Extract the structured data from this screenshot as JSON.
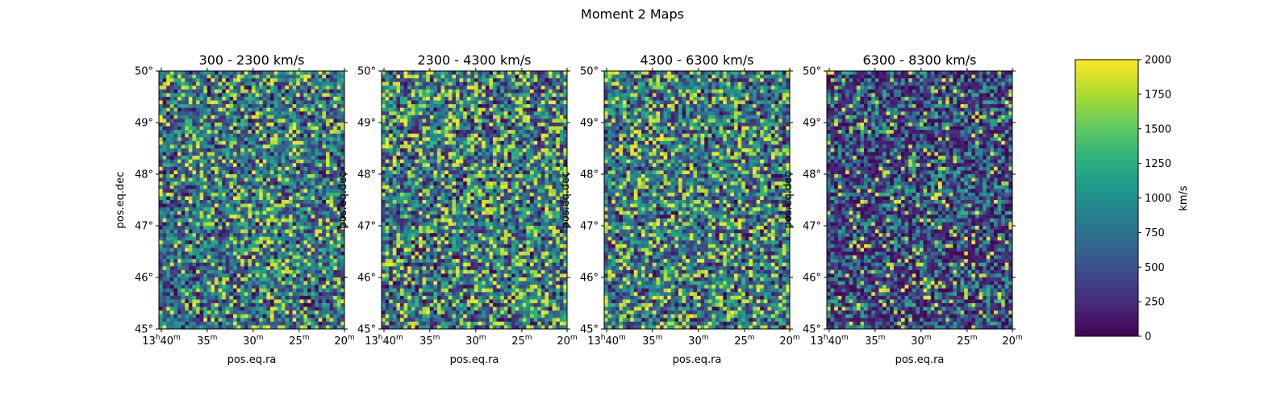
{
  "figure": {
    "suptitle": "Moment 2 Maps"
  },
  "chart_data": [
    {
      "type": "heatmap",
      "title": "300 - 2300 km/s",
      "xlabel": "pos.eq.ra",
      "ylabel": "pos.eq.dec",
      "x_tick_labels": [
        [
          "13",
          "h",
          "40",
          "m"
        ],
        [
          "35",
          "m"
        ],
        [
          "30",
          "m"
        ],
        [
          "25",
          "m"
        ],
        [
          "20",
          "m"
        ]
      ],
      "y_tick_labels": [
        "50°",
        "49°",
        "48°",
        "47°",
        "46°",
        "45°"
      ],
      "ylim_deg": [
        45,
        50
      ],
      "grid_cols": 50,
      "grid_rows": 70,
      "value_profile": {
        "bright_fraction": 0.17,
        "dark_fraction": 0.12
      },
      "seed": 11
    },
    {
      "type": "heatmap",
      "title": "2300 - 4300 km/s",
      "xlabel": "pos.eq.ra",
      "ylabel": "pos.eq.dec",
      "x_tick_labels": [
        [
          "13",
          "h",
          "40",
          "m"
        ],
        [
          "35",
          "m"
        ],
        [
          "30",
          "m"
        ],
        [
          "25",
          "m"
        ],
        [
          "20",
          "m"
        ]
      ],
      "y_tick_labels": [
        "50°",
        "49°",
        "48°",
        "47°",
        "46°",
        "45°"
      ],
      "ylim_deg": [
        45,
        50
      ],
      "grid_cols": 50,
      "grid_rows": 70,
      "value_profile": {
        "bright_fraction": 0.22,
        "dark_fraction": 0.14
      },
      "seed": 23
    },
    {
      "type": "heatmap",
      "title": "4300 - 6300 km/s",
      "xlabel": "pos.eq.ra",
      "ylabel": "pos.eq.dec",
      "x_tick_labels": [
        [
          "13",
          "h",
          "40",
          "m"
        ],
        [
          "35",
          "m"
        ],
        [
          "30",
          "m"
        ],
        [
          "25",
          "m"
        ],
        [
          "20",
          "m"
        ]
      ],
      "y_tick_labels": [
        "50°",
        "49°",
        "48°",
        "47°",
        "46°",
        "45°"
      ],
      "ylim_deg": [
        45,
        50
      ],
      "grid_cols": 50,
      "grid_rows": 70,
      "value_profile": {
        "bright_fraction": 0.2,
        "dark_fraction": 0.13
      },
      "seed": 37
    },
    {
      "type": "heatmap",
      "title": "6300 - 8300 km/s",
      "xlabel": "pos.eq.ra",
      "ylabel": "pos.eq.dec",
      "x_tick_labels": [
        [
          "13",
          "h",
          "40",
          "m"
        ],
        [
          "35",
          "m"
        ],
        [
          "30",
          "m"
        ],
        [
          "25",
          "m"
        ],
        [
          "20",
          "m"
        ]
      ],
      "y_tick_labels": [
        "50°",
        "49°",
        "48°",
        "47°",
        "46°",
        "45°"
      ],
      "ylim_deg": [
        45,
        50
      ],
      "grid_cols": 50,
      "grid_rows": 70,
      "value_profile": {
        "bright_fraction": 0.07,
        "dark_fraction": 0.45
      },
      "seed": 53
    }
  ],
  "colorbar": {
    "label": "km/s",
    "colormap": "viridis",
    "vmin": 0,
    "vmax": 2000,
    "ticks": [
      0,
      250,
      500,
      750,
      1000,
      1250,
      1500,
      1750,
      2000
    ],
    "tick_labels": [
      "0",
      "250",
      "500",
      "750",
      "1000",
      "1250",
      "1500",
      "1750",
      "2000"
    ]
  },
  "colors": {
    "viridis_stops": [
      "#440154",
      "#482878",
      "#3e4989",
      "#31688e",
      "#26828e",
      "#1f9e89",
      "#35b779",
      "#6ece58",
      "#b5de2b",
      "#fde725"
    ]
  }
}
